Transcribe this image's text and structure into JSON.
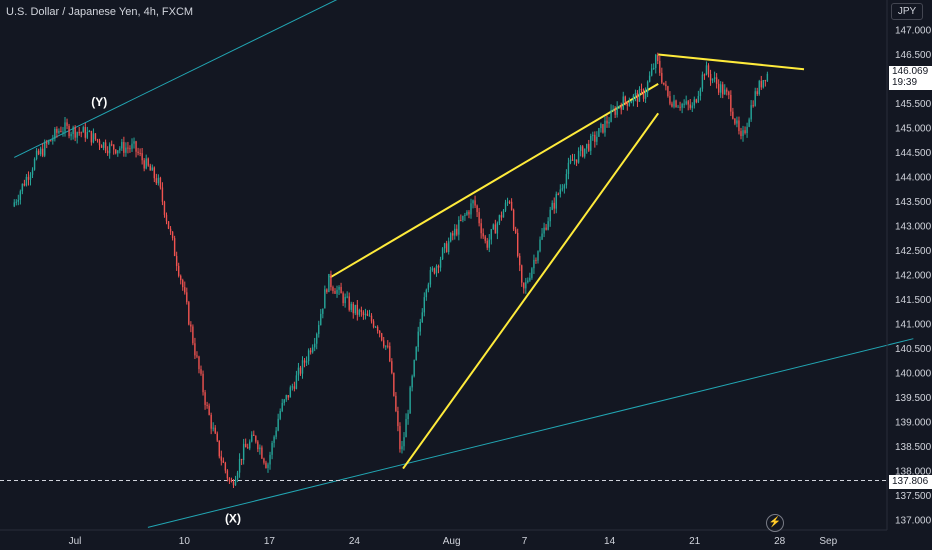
{
  "header": {
    "title": "U.S. Dollar / Japanese Yen, 4h, FXCM",
    "currency": "JPY"
  },
  "price_tag": {
    "price": "146.069",
    "countdown": "19:39"
  },
  "level_tag": {
    "price": "137.806"
  },
  "colors": {
    "background": "#131722",
    "up": "#26a69a",
    "down": "#ef5350",
    "channel": "#22a6b3",
    "pattern": "#ffeb3b",
    "text": "#d1d4dc"
  },
  "chart_data": {
    "type": "candlestick",
    "title": "U.S. Dollar / Japanese Yen, 4h, FXCM",
    "ylim": [
      136.85,
      147.4
    ],
    "y_ticks": [
      "137.000",
      "137.500",
      "138.000",
      "138.500",
      "139.000",
      "139.500",
      "140.000",
      "140.500",
      "141.000",
      "141.500",
      "142.000",
      "142.500",
      "143.000",
      "143.500",
      "144.000",
      "144.500",
      "145.000",
      "145.500",
      "146.500",
      "147.000"
    ],
    "x_ticks": [
      "Jul",
      "10",
      "17",
      "24",
      "Aug",
      "7",
      "14",
      "21",
      "28",
      "Sep"
    ],
    "price_path": [
      {
        "x": "Jun 26",
        "y": 143.4
      },
      {
        "x": "Jun 28",
        "y": 144.4
      },
      {
        "x": "Jun 30",
        "y": 145.0
      },
      {
        "x": "Jul 2",
        "y": 144.9
      },
      {
        "x": "Jul 4",
        "y": 144.6
      },
      {
        "x": "Jul 6",
        "y": 144.6
      },
      {
        "x": "Jul 8",
        "y": 143.9
      },
      {
        "x": "Jul 10",
        "y": 141.8
      },
      {
        "x": "Jul 11",
        "y": 140.5
      },
      {
        "x": "Jul 12",
        "y": 139.3
      },
      {
        "x": "Jul 13",
        "y": 138.4
      },
      {
        "x": "Jul 14",
        "y": 137.7
      },
      {
        "x": "Jul 15",
        "y": 138.4
      },
      {
        "x": "Jul 16",
        "y": 138.7
      },
      {
        "x": "Jul 17",
        "y": 138.1
      },
      {
        "x": "Jul 18",
        "y": 139.2
      },
      {
        "x": "Jul 19",
        "y": 139.7
      },
      {
        "x": "Jul 20",
        "y": 140.2
      },
      {
        "x": "Jul 21",
        "y": 140.8
      },
      {
        "x": "Jul 22",
        "y": 141.9
      },
      {
        "x": "Jul 24",
        "y": 141.3
      },
      {
        "x": "Jul 26",
        "y": 141.0
      },
      {
        "x": "Jul 27",
        "y": 140.4
      },
      {
        "x": "Jul 28",
        "y": 138.3
      },
      {
        "x": "Jul 29",
        "y": 140.0
      },
      {
        "x": "Jul 30",
        "y": 141.8
      },
      {
        "x": "Aug 1",
        "y": 142.7
      },
      {
        "x": "Aug 3",
        "y": 143.5
      },
      {
        "x": "Aug 4",
        "y": 142.6
      },
      {
        "x": "Aug 6",
        "y": 143.6
      },
      {
        "x": "Aug 7",
        "y": 141.6
      },
      {
        "x": "Aug 9",
        "y": 143.1
      },
      {
        "x": "Aug 11",
        "y": 144.3
      },
      {
        "x": "Aug 13",
        "y": 144.8
      },
      {
        "x": "Aug 15",
        "y": 145.5
      },
      {
        "x": "Aug 17",
        "y": 145.7
      },
      {
        "x": "Aug 18",
        "y": 146.4
      },
      {
        "x": "Aug 19",
        "y": 145.6
      },
      {
        "x": "Aug 21",
        "y": 145.4
      },
      {
        "x": "Aug 22",
        "y": 146.2
      },
      {
        "x": "Aug 24",
        "y": 145.6
      },
      {
        "x": "Aug 25",
        "y": 144.7
      },
      {
        "x": "Aug 26",
        "y": 145.6
      },
      {
        "x": "Aug 27",
        "y": 146.1
      }
    ],
    "trendlines": [
      {
        "name": "channel-upper",
        "color": "#22a6b3",
        "from": {
          "x": "Jun 26",
          "y": 144.4
        },
        "to": {
          "x": "Aug 12",
          "y": 150.1
        }
      },
      {
        "name": "channel-lower",
        "color": "#22a6b3",
        "from": {
          "x": "Jul 7",
          "y": 136.85
        },
        "to": {
          "x": "Sep 8",
          "y": 140.7
        }
      },
      {
        "name": "wedge-upper",
        "color": "#ffeb3b",
        "from": {
          "x": "Jul 22",
          "y": 141.95
        },
        "to": {
          "x": "Aug 18",
          "y": 145.9
        }
      },
      {
        "name": "wedge-lower",
        "color": "#ffeb3b",
        "from": {
          "x": "Jul 28",
          "y": 138.05
        },
        "to": {
          "x": "Aug 18",
          "y": 145.3
        }
      },
      {
        "name": "top-line",
        "color": "#ffeb3b",
        "from": {
          "x": "Aug 18",
          "y": 146.5
        },
        "to": {
          "x": "Aug 30",
          "y": 146.2
        }
      }
    ],
    "horizontal_lines": [
      {
        "y": 137.806,
        "style": "dashed"
      }
    ],
    "annotations": [
      {
        "text": "(Y)",
        "x": "Jul 3",
        "y": 145.45
      },
      {
        "text": "(X)",
        "x": "Jul 14",
        "y": 136.95
      }
    ]
  }
}
